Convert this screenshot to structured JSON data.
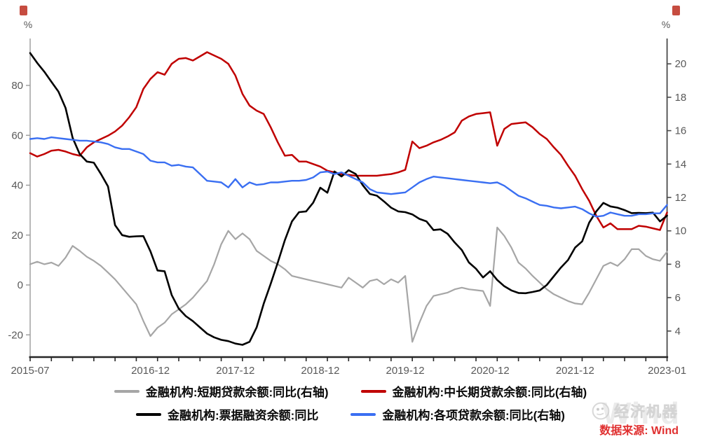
{
  "axes": {
    "left": {
      "unit": "%",
      "ticks": [
        80,
        60,
        40,
        20,
        0,
        -20
      ]
    },
    "right": {
      "unit": "%",
      "ticks": [
        20,
        18,
        16,
        14,
        12,
        10,
        8,
        6,
        4
      ]
    },
    "x": {
      "tick_labels": [
        {
          "label": "2015-07",
          "i": 0
        },
        {
          "label": "2016-12",
          "i": 17
        },
        {
          "label": "2017-12",
          "i": 29
        },
        {
          "label": "2018-12",
          "i": 41
        },
        {
          "label": "2019-12",
          "i": 53
        },
        {
          "label": "2020-12",
          "i": 65
        },
        {
          "label": "2021-12",
          "i": 77
        },
        {
          "label": "2023-01",
          "i": 90
        }
      ]
    }
  },
  "chart_data": {
    "type": "line",
    "title": "",
    "x_start": "2015-07",
    "x_end": "2023-01",
    "x_unit": "month",
    "n_points": 91,
    "left_ylim": [
      -28.9,
      98.8
    ],
    "right_ylim": [
      2.4,
      21.5
    ],
    "grid": false,
    "legend_position": "bottom",
    "series": [
      {
        "name": "金融机构:短期贷款余额:同比(右轴)",
        "axis": "right",
        "color": "#a6a6a6",
        "values": [
          8.0,
          8.15,
          8.0,
          8.1,
          7.9,
          8.4,
          9.1,
          8.8,
          8.45,
          8.2,
          7.9,
          7.5,
          7.1,
          6.6,
          6.1,
          5.6,
          4.6,
          3.7,
          4.2,
          4.5,
          5.0,
          5.3,
          5.6,
          6.0,
          6.5,
          7.0,
          8.0,
          9.2,
          10.0,
          9.5,
          9.85,
          9.5,
          8.8,
          8.5,
          8.2,
          8.0,
          7.7,
          7.3,
          7.2,
          7.1,
          7.0,
          6.9,
          6.8,
          6.7,
          6.6,
          7.2,
          6.9,
          6.6,
          7.0,
          7.1,
          6.8,
          7.1,
          6.9,
          7.3,
          3.35,
          4.5,
          5.5,
          6.1,
          6.2,
          6.3,
          6.5,
          6.6,
          6.5,
          6.45,
          6.4,
          5.5,
          10.2,
          9.7,
          9.0,
          8.1,
          7.75,
          7.3,
          6.9,
          6.5,
          6.2,
          6.0,
          5.8,
          5.65,
          5.6,
          6.3,
          7.1,
          7.9,
          8.1,
          7.9,
          8.3,
          8.9,
          8.9,
          8.5,
          8.3,
          8.2,
          8.75
        ]
      },
      {
        "name": "金融机构:中长期贷款余额:同比(右轴)",
        "axis": "right",
        "color": "#c00000",
        "values": [
          14.65,
          14.45,
          14.6,
          14.8,
          14.85,
          14.75,
          14.6,
          14.5,
          15.0,
          15.3,
          15.5,
          15.7,
          15.95,
          16.3,
          16.8,
          17.4,
          18.5,
          19.1,
          19.5,
          19.35,
          20.0,
          20.3,
          20.35,
          20.2,
          20.45,
          20.7,
          20.5,
          20.3,
          20.0,
          19.3,
          18.2,
          17.5,
          17.2,
          17.0,
          16.2,
          15.3,
          14.5,
          14.55,
          14.15,
          14.15,
          14.0,
          13.85,
          13.6,
          13.5,
          13.4,
          13.35,
          13.3,
          13.3,
          13.3,
          13.3,
          13.35,
          13.4,
          13.5,
          13.65,
          15.35,
          14.95,
          15.1,
          15.3,
          15.45,
          15.65,
          15.9,
          16.6,
          16.85,
          17.0,
          17.05,
          17.1,
          15.1,
          16.1,
          16.4,
          16.45,
          16.5,
          16.2,
          15.8,
          15.5,
          15.0,
          14.55,
          13.9,
          13.3,
          12.5,
          11.8,
          10.9,
          10.2,
          10.45,
          10.1,
          10.1,
          10.1,
          10.3,
          10.25,
          10.15,
          10.05,
          11.1
        ]
      },
      {
        "name": "金融机构:票据融资余额:同比",
        "axis": "left",
        "color": "#000000",
        "values": [
          93,
          89,
          85.5,
          81.5,
          77.5,
          71,
          59,
          52.5,
          49.5,
          49,
          44.5,
          39.5,
          24,
          20,
          19.3,
          19.5,
          19.6,
          13.5,
          5.8,
          5.5,
          -4,
          -9.5,
          -12.5,
          -14.5,
          -17,
          -19.5,
          -21,
          -22,
          -22.5,
          -23.5,
          -24,
          -22.8,
          -17,
          -7.5,
          0.5,
          9,
          18,
          25.5,
          29.2,
          29.5,
          33,
          39,
          37,
          45.5,
          43.5,
          46,
          44.5,
          40,
          36.5,
          35.8,
          33.5,
          31,
          29.5,
          29.2,
          28.3,
          26.5,
          25.5,
          22,
          22.3,
          20.5,
          17,
          14,
          9,
          6.5,
          3.0,
          5.5,
          2.0,
          -0.5,
          -2.2,
          -3.2,
          -3.3,
          -2.8,
          -2.2,
          0,
          3.5,
          7,
          10,
          15,
          17.5,
          25,
          29.5,
          32.9,
          31.5,
          31,
          30,
          28.8,
          28.9,
          28.8,
          29,
          25.5,
          27.8
        ]
      },
      {
        "name": "金融机构:各项贷款余额:同比(右轴)",
        "axis": "right",
        "color": "#3a6ff2",
        "values": [
          15.5,
          15.55,
          15.5,
          15.6,
          15.55,
          15.5,
          15.45,
          15.4,
          15.4,
          15.35,
          15.3,
          15.2,
          15.0,
          14.9,
          14.9,
          14.75,
          14.6,
          14.2,
          14.1,
          14.1,
          13.9,
          13.95,
          13.85,
          13.8,
          13.4,
          13.0,
          12.95,
          12.9,
          12.6,
          13.1,
          12.6,
          12.9,
          12.75,
          12.8,
          12.9,
          12.9,
          12.95,
          13.0,
          13.0,
          13.05,
          13.2,
          13.5,
          13.55,
          13.4,
          13.5,
          13.3,
          13.1,
          12.9,
          12.5,
          12.3,
          12.25,
          12.2,
          12.25,
          12.3,
          12.6,
          12.9,
          13.1,
          13.25,
          13.2,
          13.15,
          13.1,
          13.05,
          13.0,
          12.95,
          12.9,
          12.85,
          12.9,
          12.7,
          12.4,
          12.1,
          11.95,
          11.75,
          11.55,
          11.5,
          11.4,
          11.35,
          11.4,
          11.45,
          11.3,
          11.05,
          10.85,
          10.9,
          11.1,
          11.0,
          10.9,
          10.9,
          11.0,
          11.0,
          11.05,
          11.05,
          11.55
        ]
      }
    ]
  },
  "legend": {
    "rows": [
      [
        0,
        1
      ],
      [
        2,
        3
      ]
    ]
  },
  "footer": {
    "brand": "经济机器",
    "source": "数据来源: Wind",
    "watermark": "Wind"
  }
}
